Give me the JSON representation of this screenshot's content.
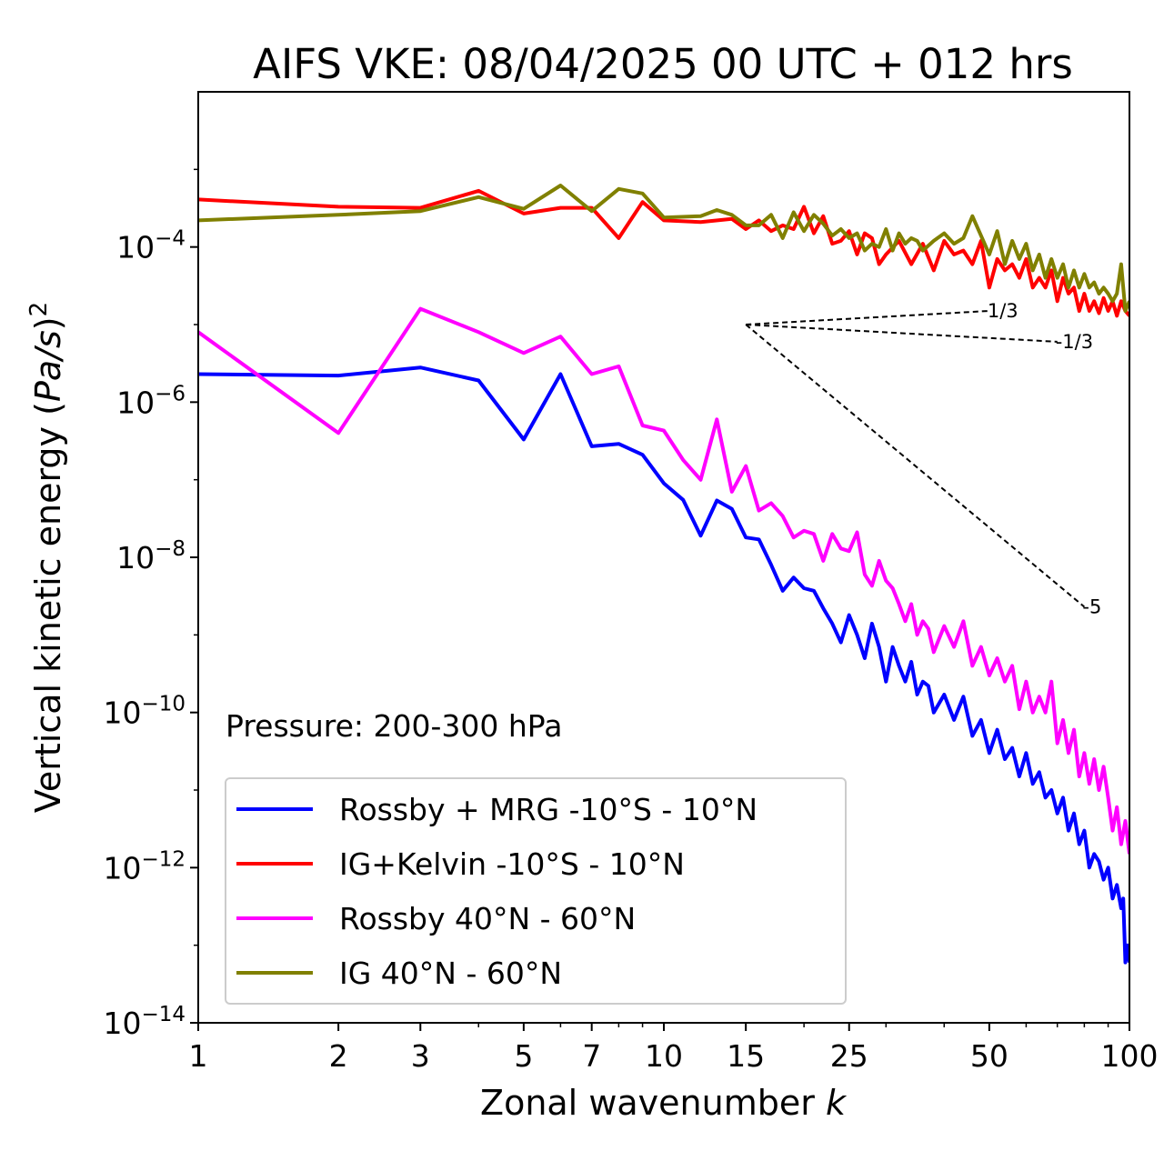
{
  "chart_data": {
    "type": "line",
    "title": "AIFS VKE: 08/04/2025 00 UTC + 012 hrs",
    "xlabel_main": "Zonal wavenumber ",
    "xlabel_var": "k",
    "ylabel_main": "Vertical kinetic energy (",
    "ylabel_var": "Pa/s",
    "ylabel_close": ")",
    "ylabel_exp": "2",
    "xscale": "log",
    "yscale": "log",
    "xlim": [
      1,
      100
    ],
    "ylim": [
      1e-14,
      0.01
    ],
    "grid": false,
    "legend_position": "lower-left",
    "annotation": "Pressure: 200-300 hPa",
    "x_ticks": [
      {
        "v": 1,
        "label": "1"
      },
      {
        "v": 2,
        "label": "2"
      },
      {
        "v": 3,
        "label": "3"
      },
      {
        "v": 5,
        "label": "5"
      },
      {
        "v": 7,
        "label": "7"
      },
      {
        "v": 10,
        "label": "10"
      },
      {
        "v": 15,
        "label": "15"
      },
      {
        "v": 25,
        "label": "25"
      },
      {
        "v": 50,
        "label": "50"
      },
      {
        "v": 100,
        "label": "100"
      }
    ],
    "y_ticks": [
      {
        "v": 0.0001,
        "base": "10",
        "exp": "−4"
      },
      {
        "v": 1e-06,
        "base": "10",
        "exp": "−6"
      },
      {
        "v": 1e-08,
        "base": "10",
        "exp": "−8"
      },
      {
        "v": 1e-10,
        "base": "10",
        "exp": "−10"
      },
      {
        "v": 1e-12,
        "base": "10",
        "exp": "−12"
      },
      {
        "v": 1e-14,
        "base": "10",
        "exp": "−14"
      }
    ],
    "reference_lines": [
      {
        "label": "1/3",
        "x0": 15,
        "y0": 1e-05,
        "x1": 50,
        "y1": 1.5e-05
      },
      {
        "label": "-1/3",
        "x0": 15,
        "y0": 1e-05,
        "x1": 70,
        "y1": 6e-06
      },
      {
        "label": "-5",
        "x0": 15,
        "y0": 1e-05,
        "x1": 80,
        "y1": 2.3e-09
      }
    ],
    "series": [
      {
        "name": "Rossby + MRG -10°S - 10°N",
        "color": "#0000ff",
        "points": [
          [
            1,
            2.3e-06
          ],
          [
            2,
            2.2e-06
          ],
          [
            3,
            2.8e-06
          ],
          [
            4,
            1.9e-06
          ],
          [
            5,
            3.3e-07
          ],
          [
            6,
            2.3e-06
          ],
          [
            7,
            2.7e-07
          ],
          [
            8,
            2.9e-07
          ],
          [
            9,
            2.1e-07
          ],
          [
            10,
            9e-08
          ],
          [
            11,
            5.5e-08
          ],
          [
            12,
            1.9e-08
          ],
          [
            13,
            5.4e-08
          ],
          [
            14,
            4.2e-08
          ],
          [
            15,
            1.8e-08
          ],
          [
            16,
            1.7e-08
          ],
          [
            17,
            8e-09
          ],
          [
            18,
            3.7e-09
          ],
          [
            19,
            5.5e-09
          ],
          [
            20,
            4e-09
          ],
          [
            21,
            3.7e-09
          ],
          [
            22,
            2.2e-09
          ],
          [
            23,
            1.4e-09
          ],
          [
            24,
            8e-10
          ],
          [
            25,
            1.8e-09
          ],
          [
            26,
            1e-09
          ],
          [
            27,
            5e-10
          ],
          [
            28,
            1.4e-09
          ],
          [
            29,
            7e-10
          ],
          [
            30,
            2.5e-10
          ],
          [
            31,
            7e-10
          ],
          [
            32,
            4e-10
          ],
          [
            33,
            2.5e-10
          ],
          [
            34,
            4.5e-10
          ],
          [
            35,
            1.7e-10
          ],
          [
            36,
            2.5e-10
          ],
          [
            37,
            2.2e-10
          ],
          [
            38,
            1e-10
          ],
          [
            40,
            1.7e-10
          ],
          [
            42,
            8e-11
          ],
          [
            44,
            1.6e-10
          ],
          [
            46,
            5e-11
          ],
          [
            48,
            8e-11
          ],
          [
            50,
            3e-11
          ],
          [
            52,
            6e-11
          ],
          [
            54,
            2.5e-11
          ],
          [
            56,
            3.5e-11
          ],
          [
            58,
            1.5e-11
          ],
          [
            60,
            3e-11
          ],
          [
            62,
            1.2e-11
          ],
          [
            64,
            1.7e-11
          ],
          [
            66,
            8e-12
          ],
          [
            68,
            1e-11
          ],
          [
            70,
            5e-12
          ],
          [
            72,
            8e-12
          ],
          [
            74,
            3e-12
          ],
          [
            76,
            5e-12
          ],
          [
            78,
            2e-12
          ],
          [
            80,
            3e-12
          ],
          [
            82,
            1e-12
          ],
          [
            84,
            1.5e-12
          ],
          [
            86,
            1.2e-12
          ],
          [
            88,
            7e-13
          ],
          [
            90,
            1e-12
          ],
          [
            92,
            4e-13
          ],
          [
            94,
            6e-13
          ],
          [
            96,
            3e-13
          ],
          [
            97,
            4e-13
          ],
          [
            98,
            6e-14
          ],
          [
            99,
            1e-13
          ],
          [
            100,
            6e-14
          ]
        ]
      },
      {
        "name": "IG+Kelvin -10°S - 10°N",
        "color": "#ff0000",
        "points": [
          [
            1,
            0.00041
          ],
          [
            2,
            0.00033
          ],
          [
            3,
            0.00032
          ],
          [
            4,
            0.00053
          ],
          [
            5,
            0.00027
          ],
          [
            6,
            0.00032
          ],
          [
            7,
            0.00032
          ],
          [
            8,
            0.00013
          ],
          [
            9,
            0.00038
          ],
          [
            10,
            0.00022
          ],
          [
            12,
            0.00021
          ],
          [
            14,
            0.00023
          ],
          [
            15,
            0.00017
          ],
          [
            16,
            0.00022
          ],
          [
            17,
            0.00016
          ],
          [
            18,
            0.00019
          ],
          [
            19,
            0.00017
          ],
          [
            20,
            0.00033
          ],
          [
            21,
            0.00015
          ],
          [
            22,
            0.00025
          ],
          [
            23,
            0.00011
          ],
          [
            24,
            0.00012
          ],
          [
            25,
            0.00016
          ],
          [
            26,
            8e-05
          ],
          [
            27,
            0.00015
          ],
          [
            28,
            0.00013
          ],
          [
            29,
            6e-05
          ],
          [
            30,
            8e-05
          ],
          [
            32,
            0.00012
          ],
          [
            34,
            6e-05
          ],
          [
            36,
            0.00011
          ],
          [
            38,
            5e-05
          ],
          [
            40,
            0.00012
          ],
          [
            42,
            8e-05
          ],
          [
            44,
            9e-05
          ],
          [
            46,
            6e-05
          ],
          [
            48,
            0.00012
          ],
          [
            50,
            3e-05
          ],
          [
            52,
            7e-05
          ],
          [
            54,
            5e-05
          ],
          [
            56,
            6e-05
          ],
          [
            58,
            4e-05
          ],
          [
            60,
            7e-05
          ],
          [
            62,
            3e-05
          ],
          [
            64,
            4e-05
          ],
          [
            66,
            3e-05
          ],
          [
            68,
            5e-05
          ],
          [
            70,
            2e-05
          ],
          [
            72,
            4e-05
          ],
          [
            74,
            2.5e-05
          ],
          [
            76,
            3e-05
          ],
          [
            78,
            1.5e-05
          ],
          [
            80,
            2.5e-05
          ],
          [
            82,
            1.5e-05
          ],
          [
            84,
            2e-05
          ],
          [
            86,
            1.4e-05
          ],
          [
            88,
            2.2e-05
          ],
          [
            90,
            1.5e-05
          ],
          [
            92,
            2e-05
          ],
          [
            94,
            1.3e-05
          ],
          [
            96,
            2e-05
          ],
          [
            98,
            1.5e-05
          ],
          [
            100,
            1.3e-05
          ]
        ]
      },
      {
        "name": "Rossby 40°N - 60°N",
        "color": "#ff00ff",
        "points": [
          [
            1,
            8e-06
          ],
          [
            2,
            4e-07
          ],
          [
            3,
            1.6e-05
          ],
          [
            4,
            8e-06
          ],
          [
            5,
            4.3e-06
          ],
          [
            6,
            7e-06
          ],
          [
            7,
            2.3e-06
          ],
          [
            8,
            2.9e-06
          ],
          [
            9,
            5e-07
          ],
          [
            10,
            4.3e-07
          ],
          [
            11,
            1.8e-07
          ],
          [
            12,
            1e-07
          ],
          [
            13,
            6e-07
          ],
          [
            14,
            7e-08
          ],
          [
            15,
            1.5e-07
          ],
          [
            16,
            4e-08
          ],
          [
            17,
            5e-08
          ],
          [
            18,
            3.4e-08
          ],
          [
            19,
            1.8e-08
          ],
          [
            20,
            2.2e-08
          ],
          [
            21,
            2e-08
          ],
          [
            22,
            9e-09
          ],
          [
            23,
            2e-08
          ],
          [
            24,
            1.3e-08
          ],
          [
            25,
            1.2e-08
          ],
          [
            26,
            2.1e-08
          ],
          [
            27,
            6e-09
          ],
          [
            28,
            4.3e-09
          ],
          [
            29,
            9e-09
          ],
          [
            30,
            5e-09
          ],
          [
            31,
            4e-09
          ],
          [
            32,
            2.5e-09
          ],
          [
            33,
            1.5e-09
          ],
          [
            34,
            2.5e-09
          ],
          [
            35,
            1e-09
          ],
          [
            36,
            1.5e-09
          ],
          [
            37,
            1.2e-09
          ],
          [
            38,
            6e-10
          ],
          [
            40,
            1.3e-09
          ],
          [
            42,
            7e-10
          ],
          [
            44,
            1.5e-09
          ],
          [
            46,
            4e-10
          ],
          [
            48,
            7e-10
          ],
          [
            50,
            3e-10
          ],
          [
            52,
            5e-10
          ],
          [
            54,
            2.5e-10
          ],
          [
            56,
            4e-10
          ],
          [
            58,
            1.1e-10
          ],
          [
            60,
            2.5e-10
          ],
          [
            62,
            1e-10
          ],
          [
            64,
            1.6e-10
          ],
          [
            66,
            1e-10
          ],
          [
            68,
            2.5e-10
          ],
          [
            70,
            4e-11
          ],
          [
            72,
            8e-11
          ],
          [
            74,
            3e-11
          ],
          [
            76,
            6e-11
          ],
          [
            78,
            1.5e-11
          ],
          [
            80,
            3e-11
          ],
          [
            82,
            1.2e-11
          ],
          [
            84,
            2.5e-11
          ],
          [
            86,
            1e-11
          ],
          [
            88,
            2e-11
          ],
          [
            90,
            8e-12
          ],
          [
            92,
            3e-12
          ],
          [
            94,
            6e-12
          ],
          [
            96,
            2e-12
          ],
          [
            98,
            4e-12
          ],
          [
            100,
            1.5e-12
          ]
        ]
      },
      {
        "name": "IG 40°N - 60°N",
        "color": "#808000",
        "points": [
          [
            1,
            0.00022
          ],
          [
            2,
            0.00026
          ],
          [
            3,
            0.00029
          ],
          [
            4,
            0.00044
          ],
          [
            5,
            0.00031
          ],
          [
            6,
            0.00062
          ],
          [
            7,
            0.00029
          ],
          [
            8,
            0.00056
          ],
          [
            9,
            0.00049
          ],
          [
            10,
            0.00024
          ],
          [
            12,
            0.00025
          ],
          [
            13,
            0.0003
          ],
          [
            14,
            0.00026
          ],
          [
            15,
            0.00019
          ],
          [
            16,
            0.00019
          ],
          [
            17,
            0.00026
          ],
          [
            18,
            0.00013
          ],
          [
            19,
            0.00028
          ],
          [
            20,
            0.00016
          ],
          [
            21,
            0.00026
          ],
          [
            22,
            0.0002
          ],
          [
            23,
            0.00014
          ],
          [
            24,
            0.00017
          ],
          [
            25,
            0.00013
          ],
          [
            26,
            0.00015
          ],
          [
            27,
            9e-05
          ],
          [
            28,
            0.00011
          ],
          [
            29,
            0.0001
          ],
          [
            30,
            0.00017
          ],
          [
            31,
            9e-05
          ],
          [
            32,
            0.00015
          ],
          [
            33,
            0.00011
          ],
          [
            34,
            0.00013
          ],
          [
            35,
            0.00012
          ],
          [
            36,
            9e-05
          ],
          [
            38,
            0.00012
          ],
          [
            40,
            0.00015
          ],
          [
            42,
            0.00011
          ],
          [
            44,
            0.00013
          ],
          [
            46,
            0.00025
          ],
          [
            48,
            0.00014
          ],
          [
            50,
            8e-05
          ],
          [
            52,
            0.00016
          ],
          [
            54,
            6e-05
          ],
          [
            56,
            0.00012
          ],
          [
            58,
            7e-05
          ],
          [
            60,
            0.00011
          ],
          [
            62,
            5e-05
          ],
          [
            64,
            8e-05
          ],
          [
            66,
            4e-05
          ],
          [
            68,
            7e-05
          ],
          [
            70,
            4e-05
          ],
          [
            72,
            6e-05
          ],
          [
            74,
            3e-05
          ],
          [
            76,
            5e-05
          ],
          [
            78,
            3e-05
          ],
          [
            80,
            4.5e-05
          ],
          [
            82,
            3e-05
          ],
          [
            84,
            3.5e-05
          ],
          [
            86,
            2.5e-05
          ],
          [
            88,
            3e-05
          ],
          [
            90,
            2.5e-05
          ],
          [
            92,
            2e-05
          ],
          [
            94,
            2.5e-05
          ],
          [
            96,
            6e-05
          ],
          [
            98,
            1.5e-05
          ],
          [
            100,
            2e-05
          ]
        ]
      }
    ]
  }
}
